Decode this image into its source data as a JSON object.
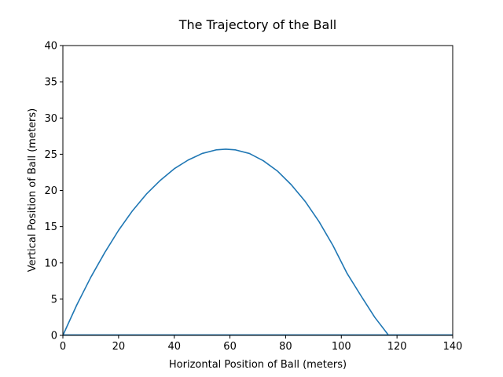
{
  "chart_data": {
    "type": "line",
    "title": "The Trajectory of the Ball",
    "xlabel": "Horizontal Position of Ball (meters)",
    "ylabel": "Vertical Position of Ball (meters)",
    "xlim": [
      0,
      140
    ],
    "ylim": [
      0,
      40
    ],
    "xticks": [
      0,
      20,
      40,
      60,
      80,
      100,
      120,
      140
    ],
    "yticks": [
      0,
      5,
      10,
      15,
      20,
      25,
      30,
      35,
      40
    ],
    "grid": false,
    "series": [
      {
        "color": "#1f77b4",
        "x": [
          0,
          5,
          10,
          15,
          20,
          25,
          30,
          35,
          40,
          45,
          50,
          55,
          58.5,
          62,
          67,
          72,
          77,
          82,
          87,
          92,
          97,
          102,
          107,
          112,
          117
        ],
        "y": [
          0,
          4.2,
          8.0,
          11.4,
          14.5,
          17.2,
          19.5,
          21.4,
          23.0,
          24.2,
          25.1,
          25.6,
          25.7,
          25.6,
          25.1,
          24.1,
          22.7,
          20.8,
          18.5,
          15.7,
          12.4,
          8.6,
          5.5,
          2.5,
          0
        ]
      }
    ]
  }
}
